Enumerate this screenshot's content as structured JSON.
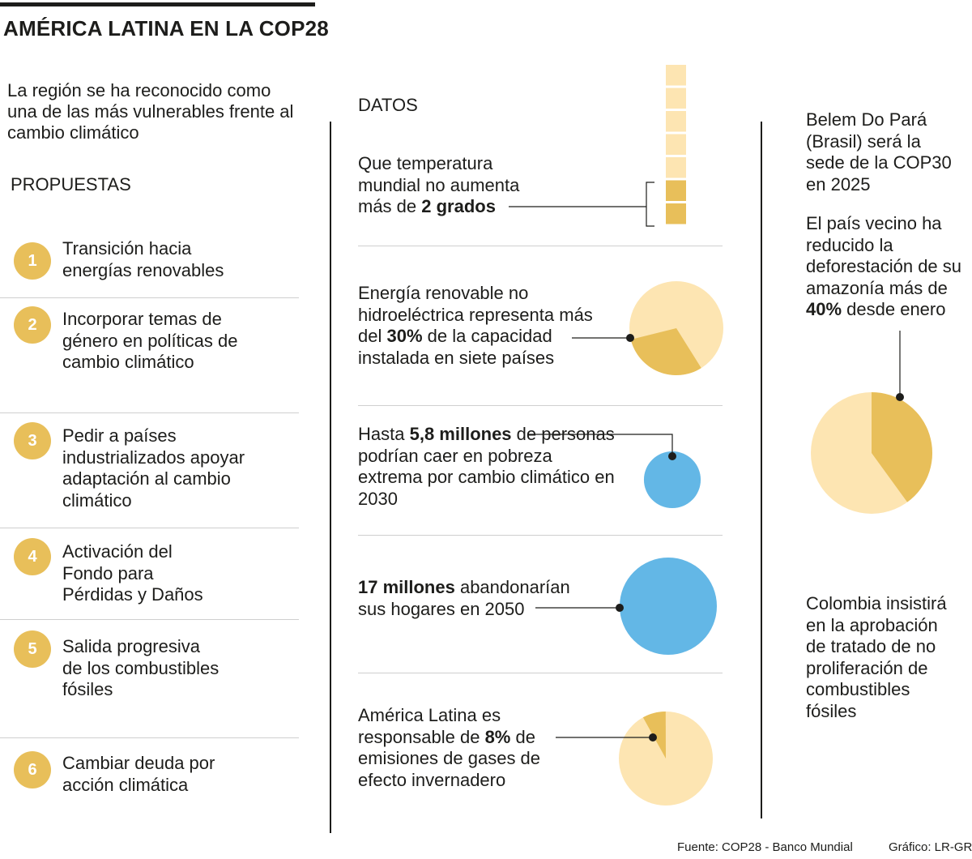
{
  "title": "AMÉRICA LATINA EN LA COP28",
  "intro": "La región se ha reconocido como una de las más vulnerables frente al cambio climático",
  "propuestas_title": "PROPUESTAS",
  "propuestas": [
    {
      "num": "1",
      "text": "Transición hacia energías renovables"
    },
    {
      "num": "2",
      "text": "Incorporar temas de género en políticas de cambio climático"
    },
    {
      "num": "3",
      "text": "Pedir a países industrializados apoyar adaptación al cambio climático"
    },
    {
      "num": "4",
      "text": "Activación del Fondo para Pérdidas y Daños"
    },
    {
      "num": "5",
      "text": "Salida progresiva de los combustibles fósiles"
    },
    {
      "num": "6",
      "text": "Cambiar deuda por acción climática"
    }
  ],
  "datos_title": "DATOS",
  "datos": {
    "temp": {
      "pre": "Que temperatura mundial no aumenta más de ",
      "bold": "2 grados",
      "post": ""
    },
    "renovable": {
      "pre": "Energía renovable no hidroeléctrica representa más del ",
      "bold": "30%",
      "post": " de la capacidad instalada en siete países"
    },
    "pobreza": {
      "pre": "Hasta ",
      "bold": "5,8 millones",
      "post": " de personas podrían caer en pobreza extrema por cambio climático en 2030"
    },
    "hogares": {
      "pre": "",
      "bold": "17 millones",
      "post": " abandonarían sus hogares en 2050"
    },
    "emisiones": {
      "pre": "América Latina es responsable de ",
      "bold": "8%",
      "post": " de emisiones de gases de efecto invernadero"
    }
  },
  "right": {
    "belem": "Belem Do Pará (Brasil) será la sede de la COP30 en 2025",
    "brasil": {
      "pre": "El país vecino ha reducido la deforestación de su amazonía más de ",
      "bold": "40%",
      "post": " desde enero"
    },
    "colombia": "Colombia insistirá en la aprobación de tratado de no proliferación de combustibles fósiles"
  },
  "footer": {
    "fuente": "Fuente: COP28 - Banco Mundial",
    "grafico": "Gráfico: LR-GR"
  },
  "colors": {
    "gold": "#e8bf5a",
    "cream": "#fde5b2",
    "blue": "#63b7e6",
    "ink": "#1d1d1b"
  },
  "chart_data": [
    {
      "type": "bar",
      "name": "temperatura",
      "total_blocks": 7,
      "highlighted_blocks": 2
    },
    {
      "type": "pie",
      "name": "renovable",
      "highlight_percent": 30
    },
    {
      "type": "pie",
      "name": "deforestacion",
      "highlight_percent": 40
    },
    {
      "type": "pie",
      "name": "emisiones",
      "highlight_percent": 8
    },
    {
      "type": "bubble",
      "name": "pobreza",
      "value": 5.8
    },
    {
      "type": "bubble",
      "name": "hogares",
      "value": 17
    }
  ]
}
